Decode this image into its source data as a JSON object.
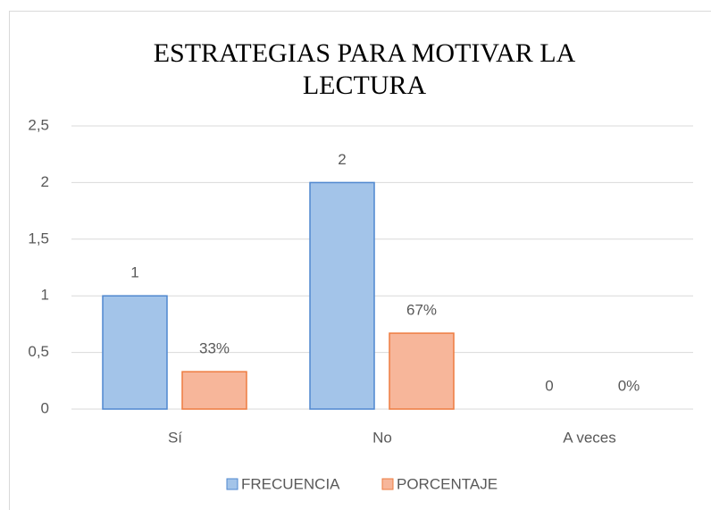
{
  "chart_data": {
    "type": "bar",
    "title": "ESTRATEGIAS PARA MOTIVAR LA LECTURA",
    "categories": [
      "Sí",
      "No",
      "A veces"
    ],
    "series": [
      {
        "name": "FRECUENCIA",
        "color": "#a3c4e9",
        "edgecolor": "#4f87cf",
        "values": [
          1,
          2,
          0
        ]
      },
      {
        "name": "PORCENTAJE",
        "color": "#f7b69a",
        "edgecolor": "#ee7c40",
        "values": [
          0.33,
          0.67,
          0
        ],
        "value_labels": [
          "33%",
          "67%",
          "0%"
        ]
      }
    ],
    "ylim": [
      0,
      2.5
    ],
    "yticks": [
      0,
      {
        "value": 0.5,
        "label": "0,5"
      },
      1,
      {
        "value": 1.5,
        "label": "1,5"
      },
      2,
      {
        "value": 2.5,
        "label": "2,5"
      }
    ],
    "grid": true,
    "legend": "bottom"
  }
}
